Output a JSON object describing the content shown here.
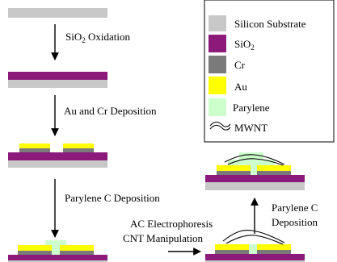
{
  "colors": {
    "silicon": "#c8c8c8",
    "sio2": "#8b1a7a",
    "cr": "#7a7a7a",
    "au": "#ffff00",
    "parylene": "#ccffcc",
    "ink": "#000000"
  },
  "steps": {
    "step1_label": "SiO",
    "step1_sub": "2",
    "step1_rest": " Oxidation",
    "step2_label": "Au and Cr Deposition",
    "step3_label": "Parylene C Deposition",
    "step4_line1": "AC Electrophoresis",
    "step4_line2": "CNT Manipulation",
    "step5_line1": "Parylene C",
    "step5_line2": "Deposition"
  },
  "legend": {
    "items": [
      {
        "key": "silicon",
        "label": "Silicon Substrate"
      },
      {
        "key": "sio2",
        "label": "SiO",
        "sub": "2"
      },
      {
        "key": "cr",
        "label": "Cr"
      },
      {
        "key": "au",
        "label": "Au"
      },
      {
        "key": "parylene",
        "label": "Parylene"
      },
      {
        "key": "mwnt",
        "label": "MWNT"
      }
    ]
  }
}
